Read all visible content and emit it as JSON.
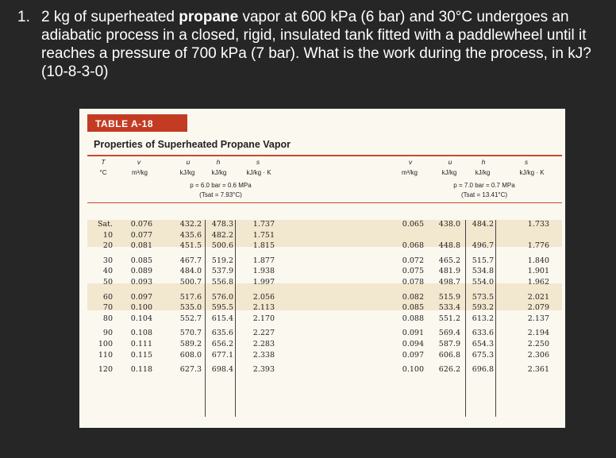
{
  "question": {
    "number": "1.",
    "text_before": "2 kg of superheated ",
    "bold_word": "propane",
    "text_after": " vapor at 600 kPa (6 bar) and 30°C undergoes an adiabatic process in a closed, rigid, insulated tank fitted with a paddlewheel until it reaches a pressure of 700 kPa (7 bar). What is the work during the process, in kJ?  (10-8-3-0)"
  },
  "table": {
    "tag": "TABLE A-18",
    "caption": "Properties of Superheated Propane Vapor",
    "headers": {
      "T": "T",
      "v": "v",
      "u": "u",
      "h": "h",
      "s": "s"
    },
    "units": {
      "T": "°C",
      "v": "m³/kg",
      "u": "kJ/kg",
      "h": "kJ/kg",
      "s": "kJ/kg · K"
    },
    "left_block": {
      "pressure": "p = 6.0 bar = 0.6 MPa",
      "tsat": "(Tsat = 7.93°C)"
    },
    "right_block": {
      "pressure": "p = 7.0 bar = 0.7 MPa",
      "tsat": "(Tsat = 13.41°C)"
    },
    "rows": [
      {
        "T": "Sat.",
        "v1": "0.076",
        "u1": "432.2",
        "h1": "478.3",
        "s1": "1.737",
        "v2": "0.065",
        "u2": "438.0",
        "h2": "484.2",
        "s2": "1.733"
      },
      {
        "T": "10",
        "v1": "0.077",
        "u1": "435.6",
        "h1": "482.2",
        "s1": "1.751",
        "v2": "",
        "u2": "",
        "h2": "",
        "s2": ""
      },
      {
        "T": "20",
        "v1": "0.081",
        "u1": "451.5",
        "h1": "500.6",
        "s1": "1.815",
        "v2": "0.068",
        "u2": "448.8",
        "h2": "496.7",
        "s2": "1.776"
      },
      {
        "T": "30",
        "v1": "0.085",
        "u1": "467.7",
        "h1": "519.2",
        "s1": "1.877",
        "v2": "0.072",
        "u2": "465.2",
        "h2": "515.7",
        "s2": "1.840"
      },
      {
        "T": "40",
        "v1": "0.089",
        "u1": "484.0",
        "h1": "537.9",
        "s1": "1.938",
        "v2": "0.075",
        "u2": "481.9",
        "h2": "534.8",
        "s2": "1.901"
      },
      {
        "T": "50",
        "v1": "0.093",
        "u1": "500.7",
        "h1": "556.8",
        "s1": "1.997",
        "v2": "0.078",
        "u2": "498.7",
        "h2": "554.0",
        "s2": "1.962"
      },
      {
        "T": "60",
        "v1": "0.097",
        "u1": "517.6",
        "h1": "576.0",
        "s1": "2.056",
        "v2": "0.082",
        "u2": "515.9",
        "h2": "573.5",
        "s2": "2.021"
      },
      {
        "T": "70",
        "v1": "0.100",
        "u1": "535.0",
        "h1": "595.5",
        "s1": "2.113",
        "v2": "0.085",
        "u2": "533.4",
        "h2": "593.2",
        "s2": "2.079"
      },
      {
        "T": "80",
        "v1": "0.104",
        "u1": "552.7",
        "h1": "615.4",
        "s1": "2.170",
        "v2": "0.088",
        "u2": "551.2",
        "h2": "613.2",
        "s2": "2.137"
      },
      {
        "T": "90",
        "v1": "0.108",
        "u1": "570.7",
        "h1": "635.6",
        "s1": "2.227",
        "v2": "0.091",
        "u2": "569.4",
        "h2": "633.6",
        "s2": "2.194"
      },
      {
        "T": "100",
        "v1": "0.111",
        "u1": "589.2",
        "h1": "656.2",
        "s1": "2.283",
        "v2": "0.094",
        "u2": "587.9",
        "h2": "654.3",
        "s2": "2.250"
      },
      {
        "T": "110",
        "v1": "0.115",
        "u1": "608.0",
        "h1": "677.1",
        "s1": "2.338",
        "v2": "0.097",
        "u2": "606.8",
        "h2": "675.3",
        "s2": "2.306"
      },
      {
        "T": "120",
        "v1": "0.118",
        "u1": "627.3",
        "h1": "698.4",
        "s1": "2.393",
        "v2": "0.100",
        "u2": "626.2",
        "h2": "696.8",
        "s2": "2.361"
      }
    ]
  }
}
